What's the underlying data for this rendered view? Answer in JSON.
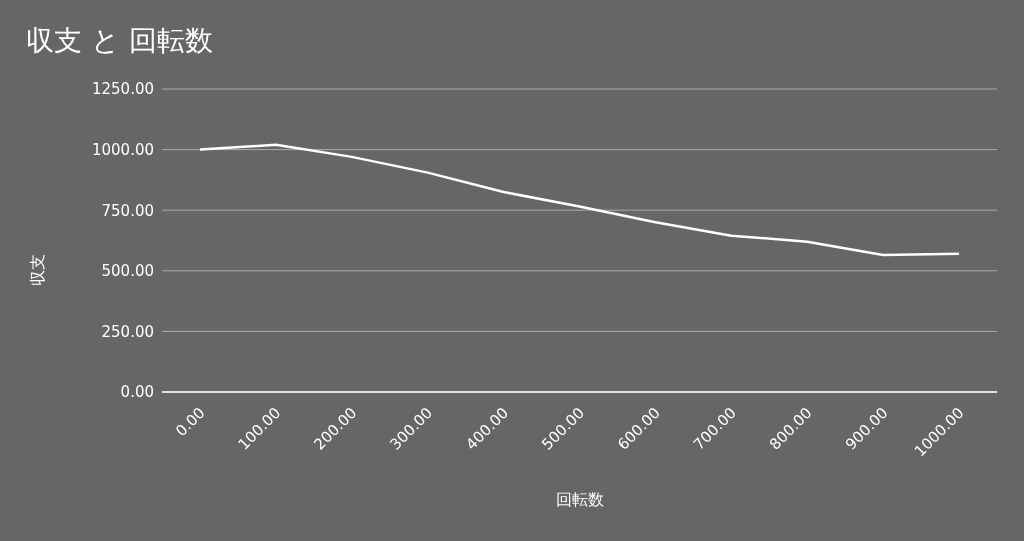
{
  "chart_data": {
    "type": "line",
    "title": "収支 と 回転数",
    "xlabel": "回転数",
    "ylabel": "収支",
    "categories": [
      "0.00",
      "100.00",
      "200.00",
      "300.00",
      "400.00",
      "500.00",
      "600.00",
      "700.00",
      "800.00",
      "900.00",
      "1000.00"
    ],
    "series": [
      {
        "color": "#ffffff",
        "values": [
          1000,
          1020,
          970,
          905,
          825,
          765,
          700,
          645,
          620,
          565,
          570
        ]
      }
    ],
    "ylim": [
      0,
      1250
    ],
    "yticks": [
      {
        "value": 0,
        "label": "0.00"
      },
      {
        "value": 250,
        "label": "250.00"
      },
      {
        "value": 500,
        "label": "500.00"
      },
      {
        "value": 750,
        "label": "750.00"
      },
      {
        "value": 1000,
        "label": "1000.00"
      },
      {
        "value": 1250,
        "label": "1250.00"
      }
    ],
    "grid": "y",
    "legend": false,
    "line_style": "solid"
  }
}
